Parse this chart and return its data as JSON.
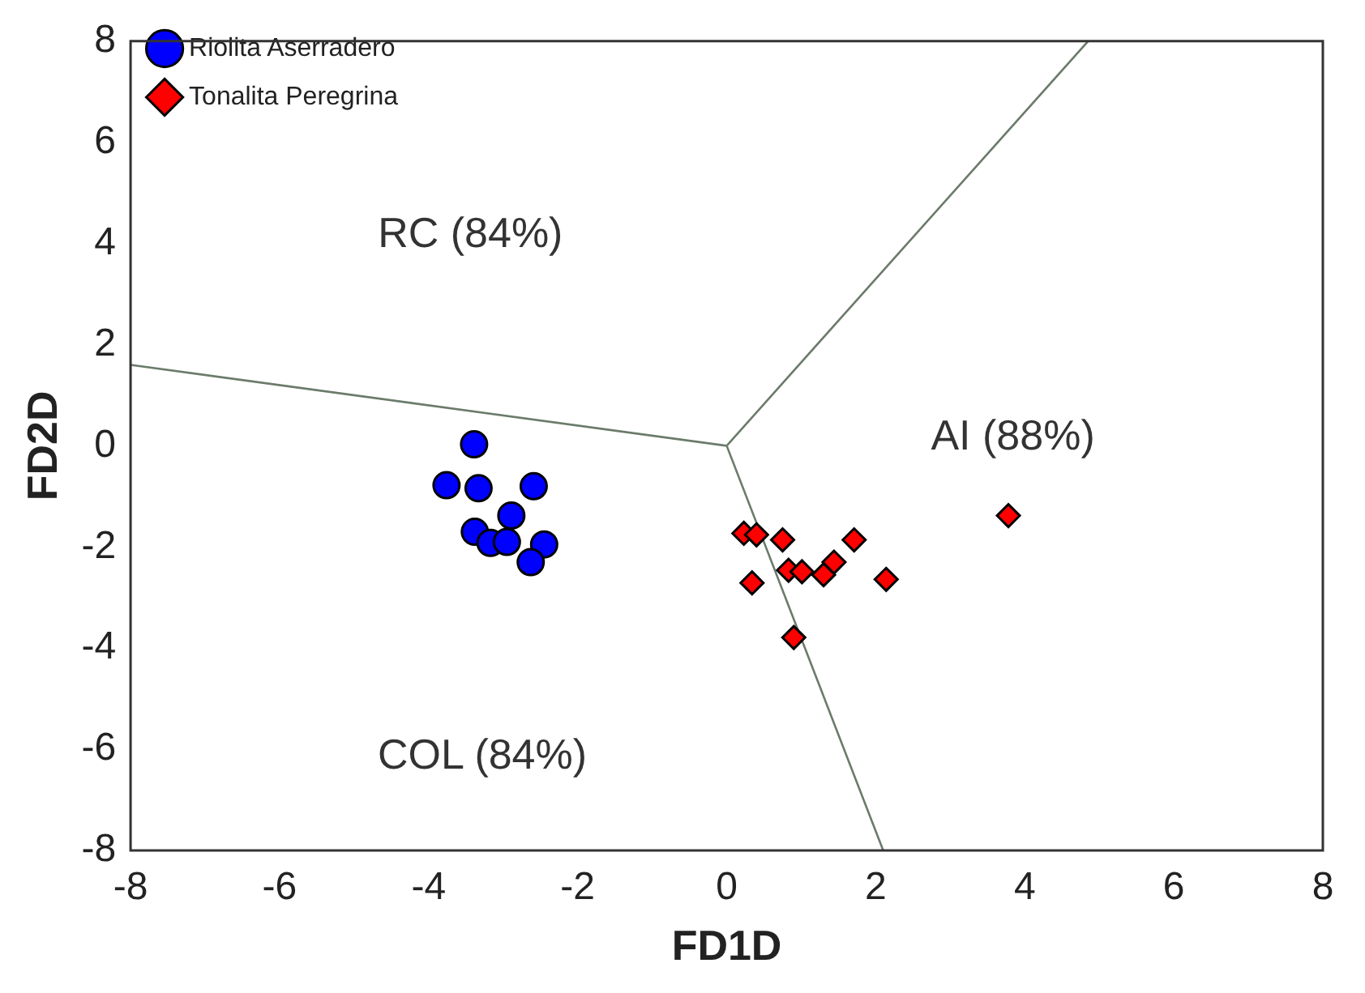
{
  "chart_data": {
    "type": "scatter",
    "xlabel": "FD1D",
    "ylabel": "FD2D",
    "xlim": [
      -8,
      8
    ],
    "ylim": [
      -8,
      8
    ],
    "xticks": [
      -8,
      -6,
      -4,
      -2,
      0,
      2,
      4,
      6,
      8
    ],
    "yticks": [
      -8,
      -6,
      -4,
      -2,
      0,
      2,
      4,
      6,
      8
    ],
    "grid": false,
    "legend": "top left",
    "series": [
      {
        "name": "Riolita Aserradero",
        "color": "#0000ff",
        "marker": "circle",
        "x": [
          -3.39,
          -3.76,
          -3.33,
          -2.59,
          -2.89,
          -3.38,
          -3.17,
          -2.95,
          -2.45,
          -2.63
        ],
        "values": [
          0.03,
          -0.78,
          -0.84,
          -0.8,
          -1.38,
          -1.7,
          -1.92,
          -1.9,
          -1.95,
          -2.3
        ]
      },
      {
        "name": "Tonalita Peregrina",
        "color": "#ff0000",
        "marker": "diamond",
        "x": [
          0.23,
          0.4,
          0.75,
          1.71,
          3.78,
          1.44,
          0.83,
          1.01,
          1.3,
          0.34,
          2.14,
          0.9
        ],
        "values": [
          -1.73,
          -1.76,
          -1.86,
          -1.86,
          -1.38,
          -2.3,
          -2.46,
          -2.49,
          -2.55,
          -2.71,
          -2.64,
          -3.79
        ]
      },
      {
        "type": "line",
        "color": "#6b7b6b",
        "marker": "none",
        "x": [
          -8,
          0
        ],
        "values": [
          1.6,
          0
        ]
      },
      {
        "type": "line",
        "color": "#6b7b6b",
        "marker": "none",
        "x": [
          0,
          4.85
        ],
        "values": [
          0,
          8
        ]
      },
      {
        "type": "line",
        "color": "#6b7b6b",
        "marker": "none",
        "x": [
          0,
          2.1
        ],
        "values": [
          0,
          -8
        ]
      }
    ],
    "annotations": [
      "RC (84%)",
      "AI (88%)",
      "COL (84%)"
    ]
  }
}
